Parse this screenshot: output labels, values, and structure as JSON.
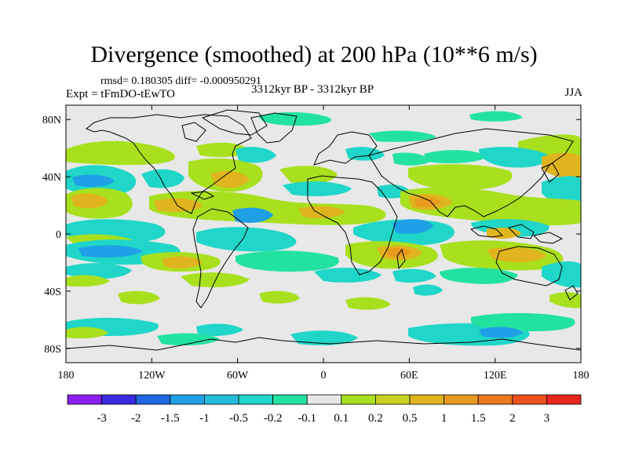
{
  "title": "Divergence (smoothed) at 200 hPa (10**6 m/s)",
  "stats": "rmsd= 0.180305 diff= -0.000950291",
  "experiment": "Expt = tFmDO-tEwTO",
  "period": "3312kyr BP - 3312kyr BP",
  "season": "JJA",
  "map": {
    "lon_range": [
      -180,
      180
    ],
    "lat_range": [
      -90,
      90
    ],
    "x_ticks": [
      {
        "lon": -180,
        "label": "180"
      },
      {
        "lon": -120,
        "label": "120W"
      },
      {
        "lon": -60,
        "label": "60W"
      },
      {
        "lon": 0,
        "label": "0"
      },
      {
        "lon": 60,
        "label": "60E"
      },
      {
        "lon": 120,
        "label": "120E"
      },
      {
        "lon": 180,
        "label": "180"
      }
    ],
    "y_ticks": [
      {
        "lat": 80,
        "label": "80N"
      },
      {
        "lat": 40,
        "label": "40N"
      },
      {
        "lat": 0,
        "label": "0"
      },
      {
        "lat": -40,
        "label": "40S"
      },
      {
        "lat": -80,
        "label": "80S"
      }
    ],
    "background_color": "#e8e8e8"
  },
  "colorbar": {
    "colors": [
      "#8a1eec",
      "#3a2be0",
      "#1f69e0",
      "#1fa0e6",
      "#23bddc",
      "#1fd6c8",
      "#22e2a0",
      "#e8e8e8",
      "#a8e01e",
      "#c8d21e",
      "#e0b41e",
      "#e89a1e",
      "#ec781e",
      "#ec501e",
      "#e8281e"
    ],
    "labels": [
      "-3",
      "-2",
      "-1.5",
      "-1",
      "-0.5",
      "-0.2",
      "-0.1",
      "0.1",
      "0.2",
      "0.5",
      "1",
      "1.5",
      "2",
      "3"
    ]
  }
}
